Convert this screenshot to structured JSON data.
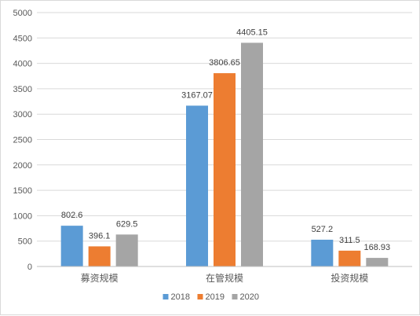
{
  "chart_data": {
    "type": "bar",
    "categories": [
      "募资规模",
      "在管规模",
      "投资规模"
    ],
    "series": [
      {
        "name": "2018",
        "color": "#5b9bd5",
        "values": [
          802.6,
          3167.07,
          527.2
        ],
        "labels": [
          "802.6",
          "3167.07",
          "527.2"
        ]
      },
      {
        "name": "2019",
        "color": "#ed7d31",
        "values": [
          396.1,
          3806.65,
          311.5
        ],
        "labels": [
          "396.1",
          "3806.65",
          "311.5"
        ]
      },
      {
        "name": "2020",
        "color": "#a5a5a5",
        "values": [
          629.5,
          4405.15,
          168.93
        ],
        "labels": [
          "629.5",
          "4405.15",
          "168.93"
        ]
      }
    ],
    "ylim": [
      0,
      5000
    ],
    "yticks": [
      "0",
      "500",
      "1000",
      "1500",
      "2000",
      "2500",
      "3000",
      "3500",
      "4000",
      "4500",
      "5000"
    ],
    "grid": true,
    "legend_position": "bottom"
  }
}
